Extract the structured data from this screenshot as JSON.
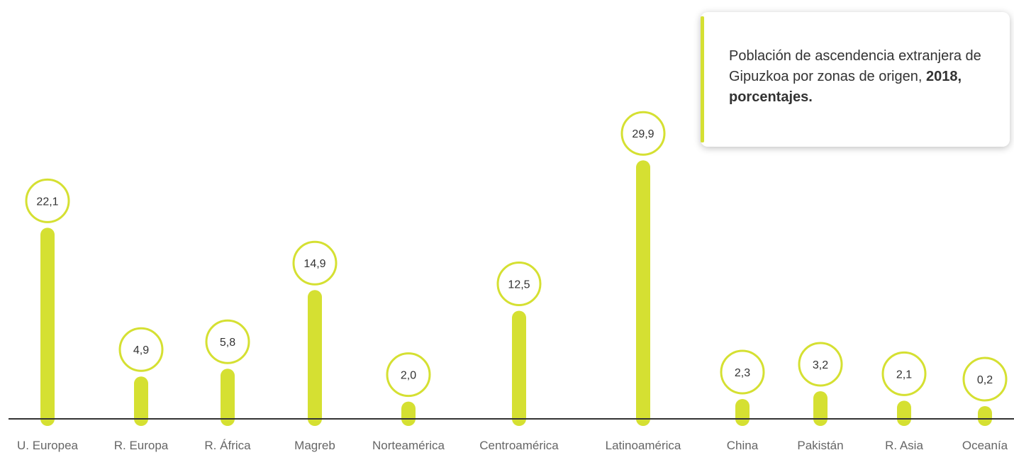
{
  "chart_data": {
    "type": "bar",
    "title_main": "Población de ascendencia extranjera de Gipuzkoa por zonas de origen,",
    "title_bold": "2018, porcentajes.",
    "categories": [
      "U. Europea",
      "R. Europa",
      "R. África",
      "Magreb",
      "Norteamérica",
      "Centroamérica",
      "Latinoamérica",
      "China",
      "Pakistán",
      "R. Asia",
      "Oceanía"
    ],
    "values": [
      22.1,
      4.9,
      5.8,
      14.9,
      2.0,
      12.5,
      29.9,
      2.3,
      3.2,
      2.1,
      0.2
    ],
    "value_labels": [
      "22,1",
      "4,9",
      "5,8",
      "14,9",
      "2,0",
      "12,5",
      "29,9",
      "2,3",
      "3,2",
      "2,1",
      "0,2"
    ],
    "xlabel": "",
    "ylabel": "",
    "grid": false,
    "legend": "none",
    "bar_color": "#d5e032",
    "axis_color": "#333333"
  }
}
